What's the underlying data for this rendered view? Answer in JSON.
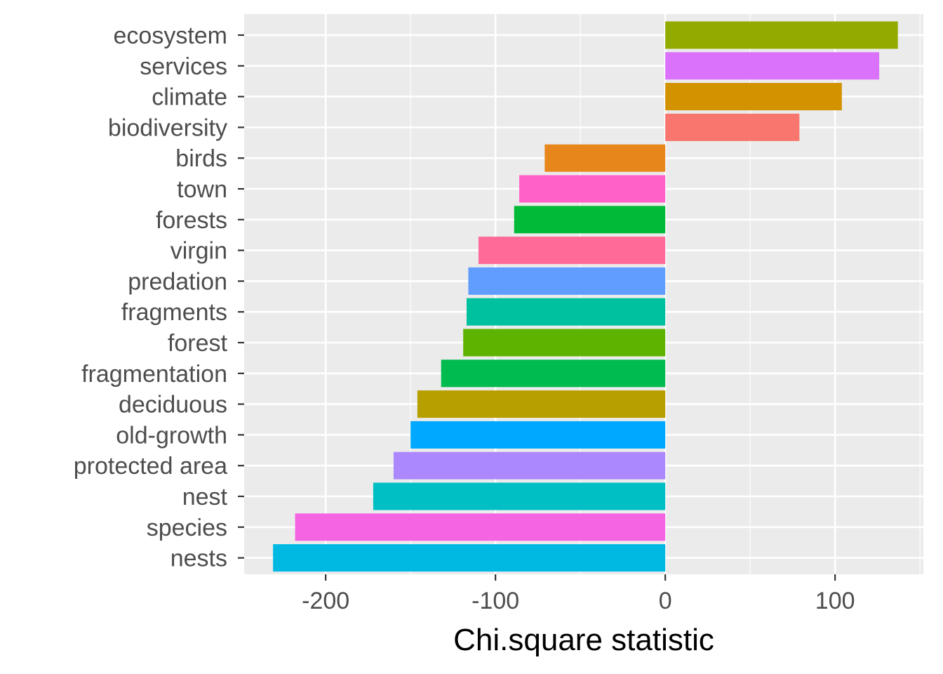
{
  "chart_data": {
    "type": "bar",
    "orientation": "horizontal",
    "title": "",
    "xlabel": "Chi.square statistic",
    "ylabel": "",
    "xlim": [
      -248,
      152
    ],
    "x_ticks": [
      -200,
      -100,
      0,
      100
    ],
    "x_tick_labels": [
      "-200",
      "-100",
      "0",
      "100"
    ],
    "x_minor_ticks": [
      -250,
      -150,
      -50,
      50,
      150
    ],
    "grid": true,
    "legend": "none",
    "panel_background": "#ebebeb",
    "grid_color": "#ffffff",
    "categories": [
      "ecosystem",
      "services",
      "climate",
      "biodiversity",
      "birds",
      "town",
      "forests",
      "virgin",
      "predation",
      "fragments",
      "forest",
      "fragmentation",
      "deciduous",
      "old-growth",
      "protected area",
      "nest",
      "species",
      "nests"
    ],
    "values": [
      137,
      126,
      104,
      79,
      -71,
      -86,
      -89,
      -110,
      -116,
      -117,
      -119,
      -132,
      -146,
      -150,
      -160,
      -172,
      -218,
      -231
    ],
    "colors": [
      "#93AA00",
      "#DB72FB",
      "#D39200",
      "#F8766D",
      "#E7861B",
      "#FF61C9",
      "#00BA38",
      "#FF6A98",
      "#619CFF",
      "#00C19F",
      "#5EB300",
      "#00BB4E",
      "#B79F00",
      "#00A9FF",
      "#AC88FF",
      "#00BFC4",
      "#F564E3",
      "#00B9E3"
    ]
  }
}
